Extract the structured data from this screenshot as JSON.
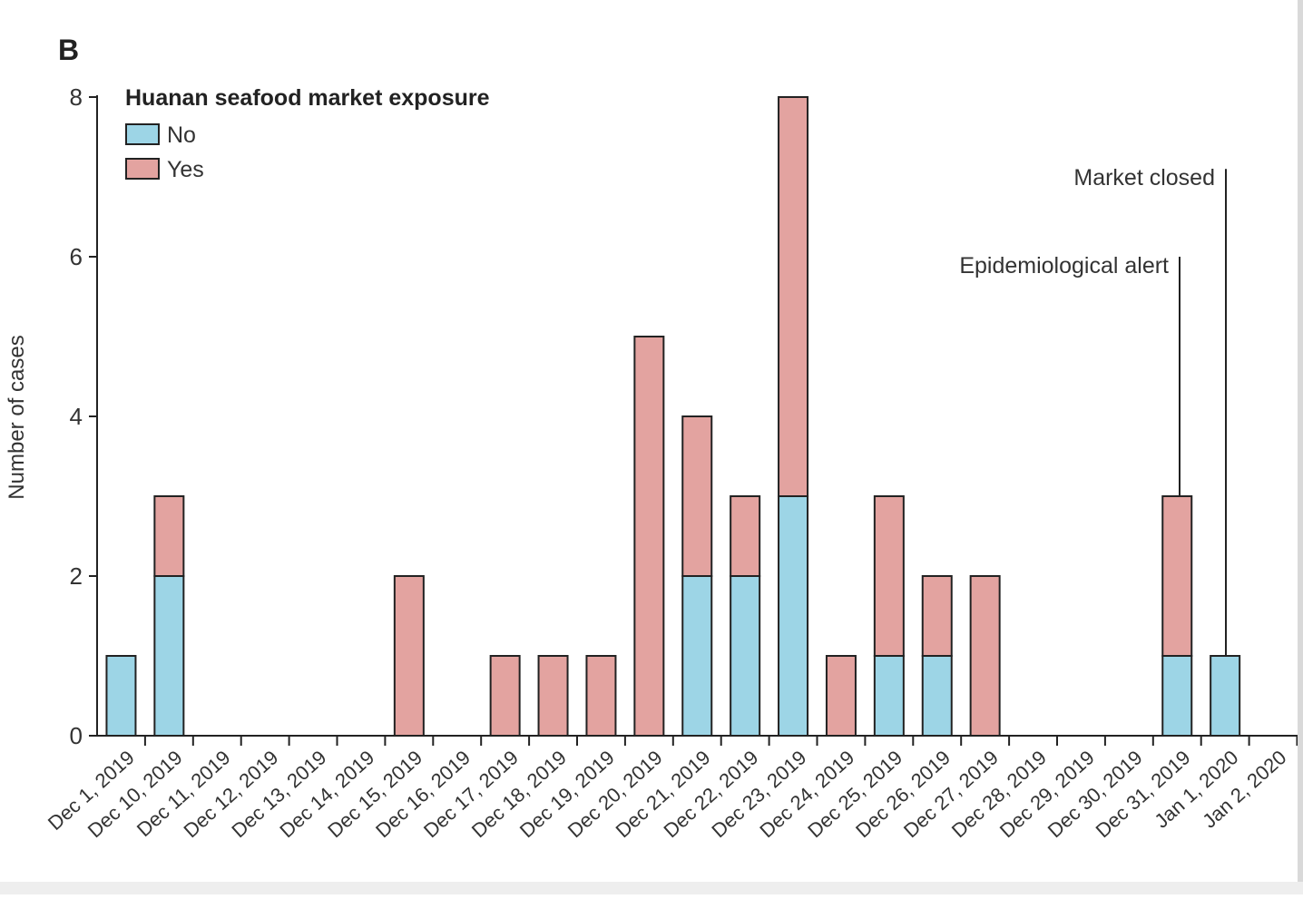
{
  "panel_label": "B",
  "chart_data": {
    "type": "bar",
    "stacked": true,
    "ylabel": "Number of cases",
    "xlabel": "",
    "ylim": [
      0,
      8
    ],
    "yticks": [
      0,
      2,
      4,
      6,
      8
    ],
    "legend": {
      "title": "Huanan seafood market exposure",
      "placement": "top-left",
      "entries": [
        {
          "name": "No",
          "color": "#9dd5e6"
        },
        {
          "name": "Yes",
          "color": "#e3a3a0"
        }
      ]
    },
    "categories": [
      "Dec 1, 2019",
      "Dec 10, 2019",
      "Dec 11, 2019",
      "Dec 12, 2019",
      "Dec 13, 2019",
      "Dec 14, 2019",
      "Dec 15, 2019",
      "Dec 16, 2019",
      "Dec 17, 2019",
      "Dec 18, 2019",
      "Dec 19, 2019",
      "Dec 20, 2019",
      "Dec 21, 2019",
      "Dec 22, 2019",
      "Dec 23, 2019",
      "Dec 24, 2019",
      "Dec 25, 2019",
      "Dec 26, 2019",
      "Dec 27, 2019",
      "Dec 28, 2019",
      "Dec 29, 2019",
      "Dec 30, 2019",
      "Dec 31, 2019",
      "Jan 1, 2020",
      "Jan 2, 2020"
    ],
    "series": [
      {
        "name": "No",
        "color": "#9dd5e6",
        "values": [
          1,
          2,
          0,
          0,
          0,
          0,
          0,
          0,
          0,
          0,
          0,
          0,
          2,
          2,
          3,
          0,
          1,
          1,
          0,
          0,
          0,
          0,
          1,
          1,
          0
        ]
      },
      {
        "name": "Yes",
        "color": "#e3a3a0",
        "values": [
          0,
          1,
          0,
          0,
          0,
          0,
          2,
          0,
          1,
          1,
          1,
          5,
          2,
          1,
          5,
          1,
          2,
          1,
          2,
          0,
          0,
          0,
          2,
          0,
          0
        ]
      }
    ],
    "annotations": [
      {
        "text": "Epidemiological alert",
        "category": "Dec 31, 2019",
        "y": 6
      },
      {
        "text": "Market closed",
        "category": "Jan 1, 2020",
        "y": 7.1
      }
    ],
    "grid": false
  }
}
